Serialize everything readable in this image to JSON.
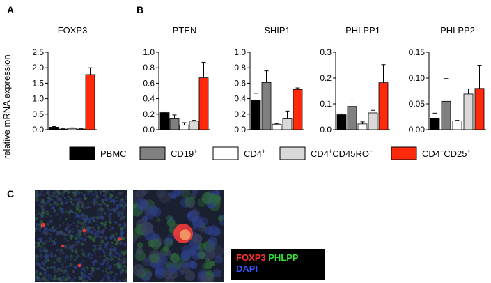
{
  "panel_labels": [
    "A",
    "B",
    "C"
  ],
  "ylabel": "relative mRNA expression",
  "chart_data": [
    {
      "type": "bar",
      "title": "FOXP3",
      "categories": [
        "PBMC",
        "CD19+",
        "CD4+",
        "CD4+CD45RO+",
        "CD4+CD25+"
      ],
      "values": [
        0.08,
        0.02,
        0.04,
        0.02,
        1.78
      ],
      "errors": [
        0.02,
        0.01,
        0.02,
        0.01,
        0.22
      ],
      "ylim": [
        0,
        2.5
      ],
      "yticks": [
        "0.0",
        "0.5",
        "1.0",
        "1.5",
        "2.0",
        "2.5"
      ]
    },
    {
      "type": "bar",
      "title": "PTEN",
      "categories": [
        "PBMC",
        "CD19+",
        "CD4+",
        "CD4+CD45RO+",
        "CD4+CD25+"
      ],
      "values": [
        0.22,
        0.14,
        0.06,
        0.11,
        0.67
      ],
      "errors": [
        0.01,
        0.05,
        0.03,
        0.01,
        0.2
      ],
      "ylim": [
        0,
        1.0
      ],
      "yticks": [
        "0.0",
        "0.2",
        "0.4",
        "0.6",
        "0.8",
        "1.0"
      ]
    },
    {
      "type": "bar",
      "title": "SHIP1",
      "categories": [
        "PBMC",
        "CD19+",
        "CD4+",
        "CD4+CD45RO+",
        "CD4+CD25+"
      ],
      "values": [
        0.38,
        0.61,
        0.07,
        0.14,
        0.52
      ],
      "errors": [
        0.09,
        0.15,
        0.01,
        0.1,
        0.02
      ],
      "ylim": [
        0,
        1.0
      ],
      "yticks": [
        "0.0",
        "0.2",
        "0.4",
        "0.6",
        "0.8",
        "1.0"
      ]
    },
    {
      "type": "bar",
      "title": "PHLPP1",
      "categories": [
        "PBMC",
        "CD19+",
        "CD4+",
        "CD4+CD45RO+",
        "CD4+CD25+"
      ],
      "values": [
        0.058,
        0.09,
        0.022,
        0.065,
        0.182
      ],
      "errors": [
        0.003,
        0.025,
        0.008,
        0.01,
        0.07
      ],
      "ylim": [
        0,
        0.3
      ],
      "yticks": [
        "0.0",
        "0.1",
        "0.2",
        "0.3"
      ]
    },
    {
      "type": "bar",
      "title": "PHLPP2",
      "categories": [
        "PBMC",
        "CD19+",
        "CD4+",
        "CD4+CD45RO+",
        "CD4+CD25+"
      ],
      "values": [
        0.022,
        0.055,
        0.017,
        0.069,
        0.08
      ],
      "errors": [
        0.01,
        0.044,
        0.001,
        0.01,
        0.045
      ],
      "ylim": [
        0,
        0.15
      ],
      "yticks": [
        "0.00",
        "0.05",
        "0.10",
        "0.15"
      ]
    }
  ],
  "legend": [
    {
      "base": "PBMC",
      "sup": "",
      "color": "#000000"
    },
    {
      "base": "CD19",
      "sup": "+",
      "color": "#808080"
    },
    {
      "base": "CD4",
      "sup": "+",
      "color": "#ffffff"
    },
    {
      "base": "CD4",
      "sup": "+",
      "base2": "CD45RO",
      "sup2": "+",
      "color": "#d9d9d9"
    },
    {
      "base": "CD4",
      "sup": "+",
      "base2": "CD25",
      "sup2": "+",
      "color": "#ff2a0a"
    }
  ],
  "stain_legend": {
    "line1": [
      {
        "text": "FOXP3",
        "color": "#ff3030"
      },
      {
        "text": "PHLPP",
        "color": "#33dd33"
      }
    ],
    "line2": [
      {
        "text": "DAPI",
        "color": "#3355ff"
      }
    ]
  }
}
